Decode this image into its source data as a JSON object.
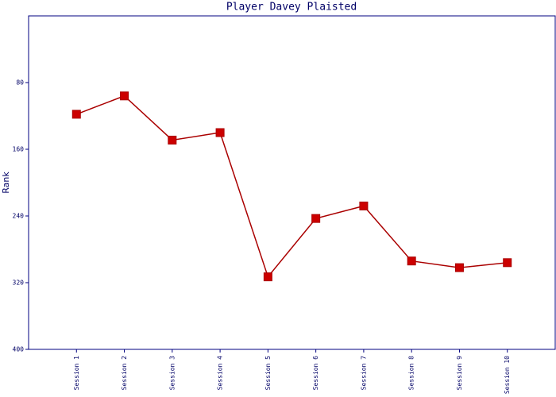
{
  "chart_data": {
    "type": "line",
    "title": "Player Davey Plaisted",
    "y_label": "Rank",
    "categories": [
      "Session 1",
      "Session 2",
      "Session 3",
      "Session 4",
      "Session 5",
      "Session 6",
      "Session 7",
      "Session 8",
      "Session 9",
      "Session 10"
    ],
    "series": [
      {
        "name": "Rank",
        "color": "#aa0000",
        "values": [
          118,
          96,
          149,
          140,
          313,
          243,
          228,
          294,
          302,
          296
        ]
      }
    ],
    "ylim": [
      0,
      400
    ],
    "y_inverted": true,
    "yticks": [
      80,
      160,
      240,
      320,
      400
    ]
  }
}
